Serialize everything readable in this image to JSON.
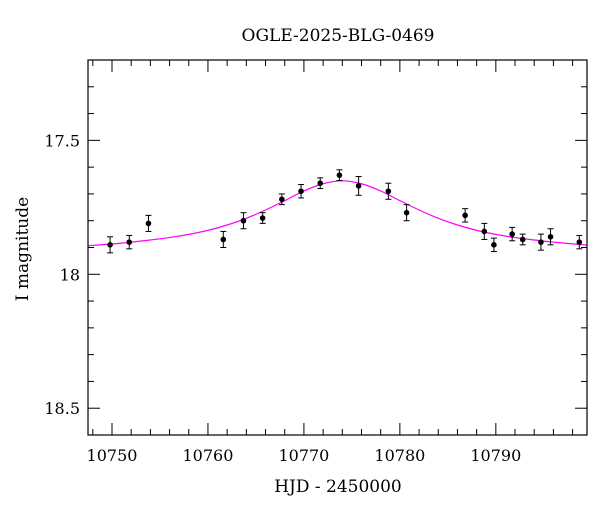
{
  "chart_data": {
    "type": "scatter",
    "title": "OGLE-2025-BLG-0469",
    "xlabel": "HJD - 2450000",
    "ylabel": "I magnitude",
    "xlim": [
      10747.5,
      10799.5
    ],
    "ylim": [
      18.6,
      17.2
    ],
    "y_inverted": true,
    "x_major_ticks": [
      10750,
      10760,
      10770,
      10780,
      10790
    ],
    "x_tick_labels": [
      "10750",
      "10760",
      "10770",
      "10780",
      "10790"
    ],
    "y_major_ticks": [
      17.5,
      18,
      18.5
    ],
    "y_tick_labels": [
      "17.5",
      "18",
      "18.5"
    ],
    "x_minor_step": 2,
    "y_minor_step": 0.1,
    "grid": false,
    "legend": "none",
    "series": [
      {
        "kind": "points_with_errors",
        "color": "#000000",
        "x": [
          10749.8,
          10751.8,
          10753.8,
          10761.6,
          10763.7,
          10765.7,
          10767.7,
          10769.7,
          10771.7,
          10773.7,
          10775.7,
          10778.8,
          10780.7,
          10786.8,
          10788.8,
          10789.8,
          10791.7,
          10792.8,
          10794.7,
          10795.7,
          10798.7
        ],
        "y": [
          17.89,
          17.88,
          17.81,
          17.87,
          17.8,
          17.79,
          17.72,
          17.69,
          17.66,
          17.63,
          17.67,
          17.69,
          17.77,
          17.78,
          17.84,
          17.89,
          17.85,
          17.87,
          17.88,
          17.86,
          17.88
        ],
        "err": [
          0.03,
          0.025,
          0.03,
          0.03,
          0.03,
          0.02,
          0.02,
          0.025,
          0.02,
          0.02,
          0.035,
          0.03,
          0.03,
          0.025,
          0.03,
          0.025,
          0.025,
          0.02,
          0.03,
          0.03,
          0.025
        ]
      },
      {
        "kind": "model_curve",
        "color": "#ff00ff",
        "x": [
          10747.5,
          10750,
          10752,
          10754,
          10756,
          10758,
          10760,
          10762,
          10764,
          10766,
          10768,
          10770,
          10772,
          10774,
          10776,
          10778,
          10780,
          10782,
          10784,
          10786,
          10788,
          10790,
          10792,
          10794,
          10796,
          10799.5
        ],
        "y": [
          17.893,
          17.887,
          17.88,
          17.872,
          17.863,
          17.851,
          17.836,
          17.816,
          17.791,
          17.76,
          17.725,
          17.689,
          17.662,
          17.651,
          17.662,
          17.689,
          17.725,
          17.76,
          17.791,
          17.816,
          17.836,
          17.851,
          17.863,
          17.872,
          17.88,
          17.891
        ]
      }
    ]
  }
}
